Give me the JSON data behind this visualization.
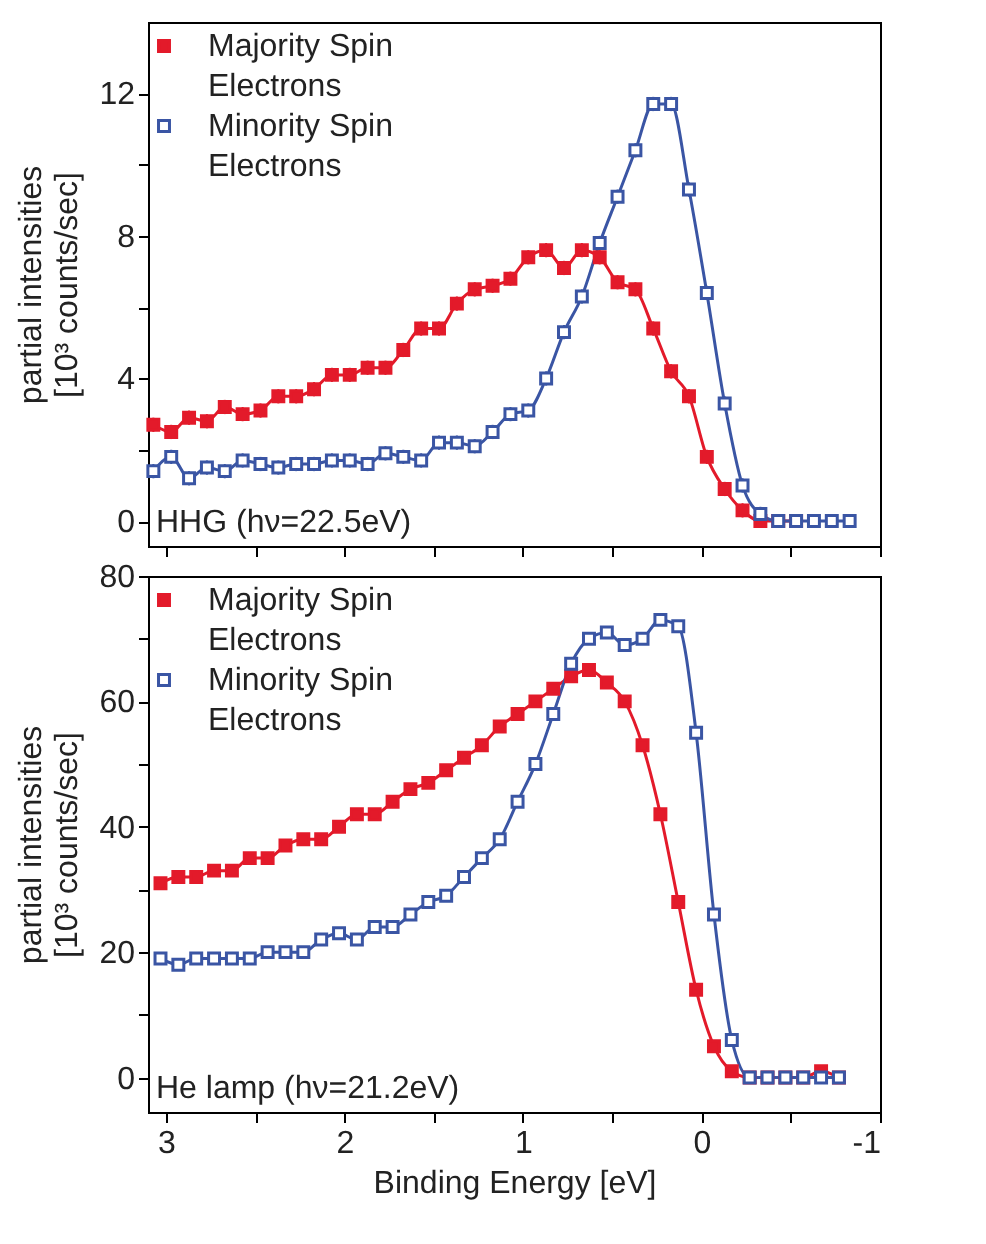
{
  "chart_data": [
    {
      "type": "line",
      "ylabel": "partial intensities [10³ counts/sec]",
      "xlim": [
        3.1,
        -1
      ],
      "xticks": [
        3,
        {
          "value": 2.5,
          "label": null
        },
        2,
        {
          "value": 1.5,
          "label": null
        },
        1,
        {
          "value": 0.5,
          "label": null
        },
        0,
        {
          "value": -0.5,
          "label": null
        },
        -1
      ],
      "ylim": [
        -0.7,
        14
      ],
      "yticks": [
        0,
        {
          "value": 2,
          "label": null
        },
        4,
        {
          "value": 6,
          "label": null
        },
        8,
        {
          "value": 10,
          "label": null
        },
        12
      ],
      "tick_labels": "y",
      "grid": false,
      "legend": "top left",
      "marker": "square",
      "line_style": "solid",
      "annotations": [
        "HHG (hν=22.5eV)"
      ],
      "series": [
        {
          "name": "Majority Spin Electrons",
          "color": "#e31a2a",
          "x": [
            3.07,
            2.97,
            2.87,
            2.77,
            2.67,
            2.57,
            2.47,
            2.37,
            2.27,
            2.17,
            2.07,
            1.97,
            1.87,
            1.77,
            1.67,
            1.57,
            1.47,
            1.37,
            1.27,
            1.17,
            1.07,
            0.97,
            0.87,
            0.77,
            0.67,
            0.57,
            0.47,
            0.37,
            0.27,
            0.17,
            0.07,
            -0.03,
            -0.13,
            -0.23,
            -0.33,
            -0.43,
            -0.53
          ],
          "values": [
            2.7,
            2.5,
            2.9,
            2.8,
            3.2,
            3.0,
            3.1,
            3.5,
            3.5,
            3.7,
            4.1,
            4.1,
            4.3,
            4.3,
            4.8,
            5.4,
            5.4,
            6.1,
            6.5,
            6.6,
            6.8,
            7.4,
            7.6,
            7.1,
            7.6,
            7.4,
            6.7,
            6.5,
            5.4,
            4.2,
            3.5,
            1.8,
            0.9,
            0.3,
            0,
            0,
            0
          ],
          "errors": [
            0.2,
            0.2,
            0.2,
            0.2,
            0.2,
            0.2,
            0.2,
            0.2,
            0.2,
            0.2,
            0.2,
            0.2,
            0.2,
            0.2,
            0.2,
            0.2,
            0.2,
            0.2,
            0.2,
            0.2,
            0.2,
            0.2,
            0.2,
            0.2,
            0.2,
            0.2,
            0.2,
            0.2,
            0.2,
            0.2,
            0.2,
            0.2,
            0.2,
            0.2,
            null,
            null,
            null
          ]
        },
        {
          "name": "Minority Spin Electrons",
          "color": "#3a55a4",
          "x": [
            3.07,
            2.97,
            2.87,
            2.77,
            2.67,
            2.57,
            2.47,
            2.37,
            2.27,
            2.17,
            2.07,
            1.97,
            1.87,
            1.77,
            1.67,
            1.57,
            1.47,
            1.37,
            1.27,
            1.17,
            1.07,
            0.97,
            0.87,
            0.77,
            0.67,
            0.57,
            0.47,
            0.37,
            0.27,
            0.17,
            0.07,
            -0.03,
            -0.13,
            -0.23,
            -0.33,
            -0.43,
            -0.53,
            -0.63,
            -0.73,
            -0.83
          ],
          "values": [
            1.4,
            1.8,
            1.2,
            1.5,
            1.4,
            1.7,
            1.6,
            1.5,
            1.6,
            1.6,
            1.7,
            1.7,
            1.6,
            1.9,
            1.8,
            1.7,
            2.2,
            2.2,
            2.1,
            2.5,
            3.0,
            3.1,
            4.0,
            5.3,
            6.3,
            7.8,
            9.1,
            10.4,
            11.7,
            11.7,
            9.3,
            6.4,
            3.3,
            1.0,
            0.2,
            0,
            0,
            0,
            0,
            0
          ],
          "errors": [
            0.2,
            0.2,
            0.2,
            0.2,
            0.2,
            0.2,
            0.2,
            0.2,
            0.2,
            0.2,
            0.2,
            0.2,
            0.2,
            0.2,
            0.2,
            0.2,
            0.2,
            0.2,
            0.2,
            0.2,
            0.2,
            0.2,
            0.2,
            0.2,
            0.2,
            0.2,
            0.2,
            0.2,
            0.2,
            0.2,
            0.2,
            0.2,
            0.2,
            0.2,
            0.2,
            null,
            null,
            null,
            null,
            null
          ]
        }
      ]
    },
    {
      "type": "line",
      "xlabel": "Binding Energy [eV]",
      "ylabel": "partial intensities [10³ counts/sec]",
      "xlim": [
        3.1,
        -1
      ],
      "xticks": [
        3,
        {
          "value": 2.5,
          "label": null
        },
        2,
        {
          "value": 1.5,
          "label": null
        },
        1,
        {
          "value": 0.5,
          "label": null
        },
        0,
        {
          "value": -0.5,
          "label": null
        },
        -1
      ],
      "ylim": [
        -5.5,
        80
      ],
      "yticks": [
        0,
        {
          "value": 10,
          "label": null
        },
        20,
        {
          "value": 30,
          "label": null
        },
        40,
        {
          "value": 50,
          "label": null
        },
        60,
        {
          "value": 70,
          "label": null
        },
        80
      ],
      "grid": false,
      "legend": "top left",
      "marker": "square",
      "line_style": "solid",
      "annotations": [
        "He lamp (hν=21.2eV)"
      ],
      "series": [
        {
          "name": "Majority Spin Electrons",
          "color": "#e31a2a",
          "x": [
            3.03,
            2.93,
            2.83,
            2.73,
            2.63,
            2.53,
            2.43,
            2.33,
            2.23,
            2.13,
            2.03,
            1.93,
            1.83,
            1.73,
            1.63,
            1.53,
            1.43,
            1.33,
            1.23,
            1.13,
            1.03,
            0.93,
            0.83,
            0.73,
            0.63,
            0.53,
            0.43,
            0.33,
            0.23,
            0.13,
            0.03,
            -0.07,
            -0.17,
            -0.27,
            -0.37,
            -0.47,
            -0.57,
            -0.67,
            -0.77
          ],
          "values": [
            31,
            32,
            32,
            33,
            33,
            35,
            35,
            37,
            38,
            38,
            40,
            42,
            42,
            44,
            46,
            47,
            49,
            51,
            53,
            56,
            58,
            60,
            62,
            64,
            65,
            63,
            60,
            53,
            42,
            28,
            14,
            5,
            1,
            0,
            0,
            0,
            0,
            1,
            0
          ]
        },
        {
          "name": "Minority Spin Electrons",
          "color": "#3a55a4",
          "x": [
            3.03,
            2.93,
            2.83,
            2.73,
            2.63,
            2.53,
            2.43,
            2.33,
            2.23,
            2.13,
            2.03,
            1.93,
            1.83,
            1.73,
            1.63,
            1.53,
            1.43,
            1.33,
            1.23,
            1.13,
            1.03,
            0.93,
            0.83,
            0.73,
            0.63,
            0.53,
            0.43,
            0.33,
            0.23,
            0.13,
            0.03,
            -0.07,
            -0.17,
            -0.27,
            -0.37,
            -0.47,
            -0.57,
            -0.67,
            -0.77
          ],
          "values": [
            19,
            18,
            19,
            19,
            19,
            19,
            20,
            20,
            20,
            22,
            23,
            22,
            24,
            24,
            26,
            28,
            29,
            32,
            35,
            38,
            44,
            50,
            58,
            66,
            70,
            71,
            69,
            70,
            73,
            72,
            55,
            26,
            6,
            0,
            0,
            0,
            0,
            0,
            0
          ]
        }
      ]
    }
  ]
}
